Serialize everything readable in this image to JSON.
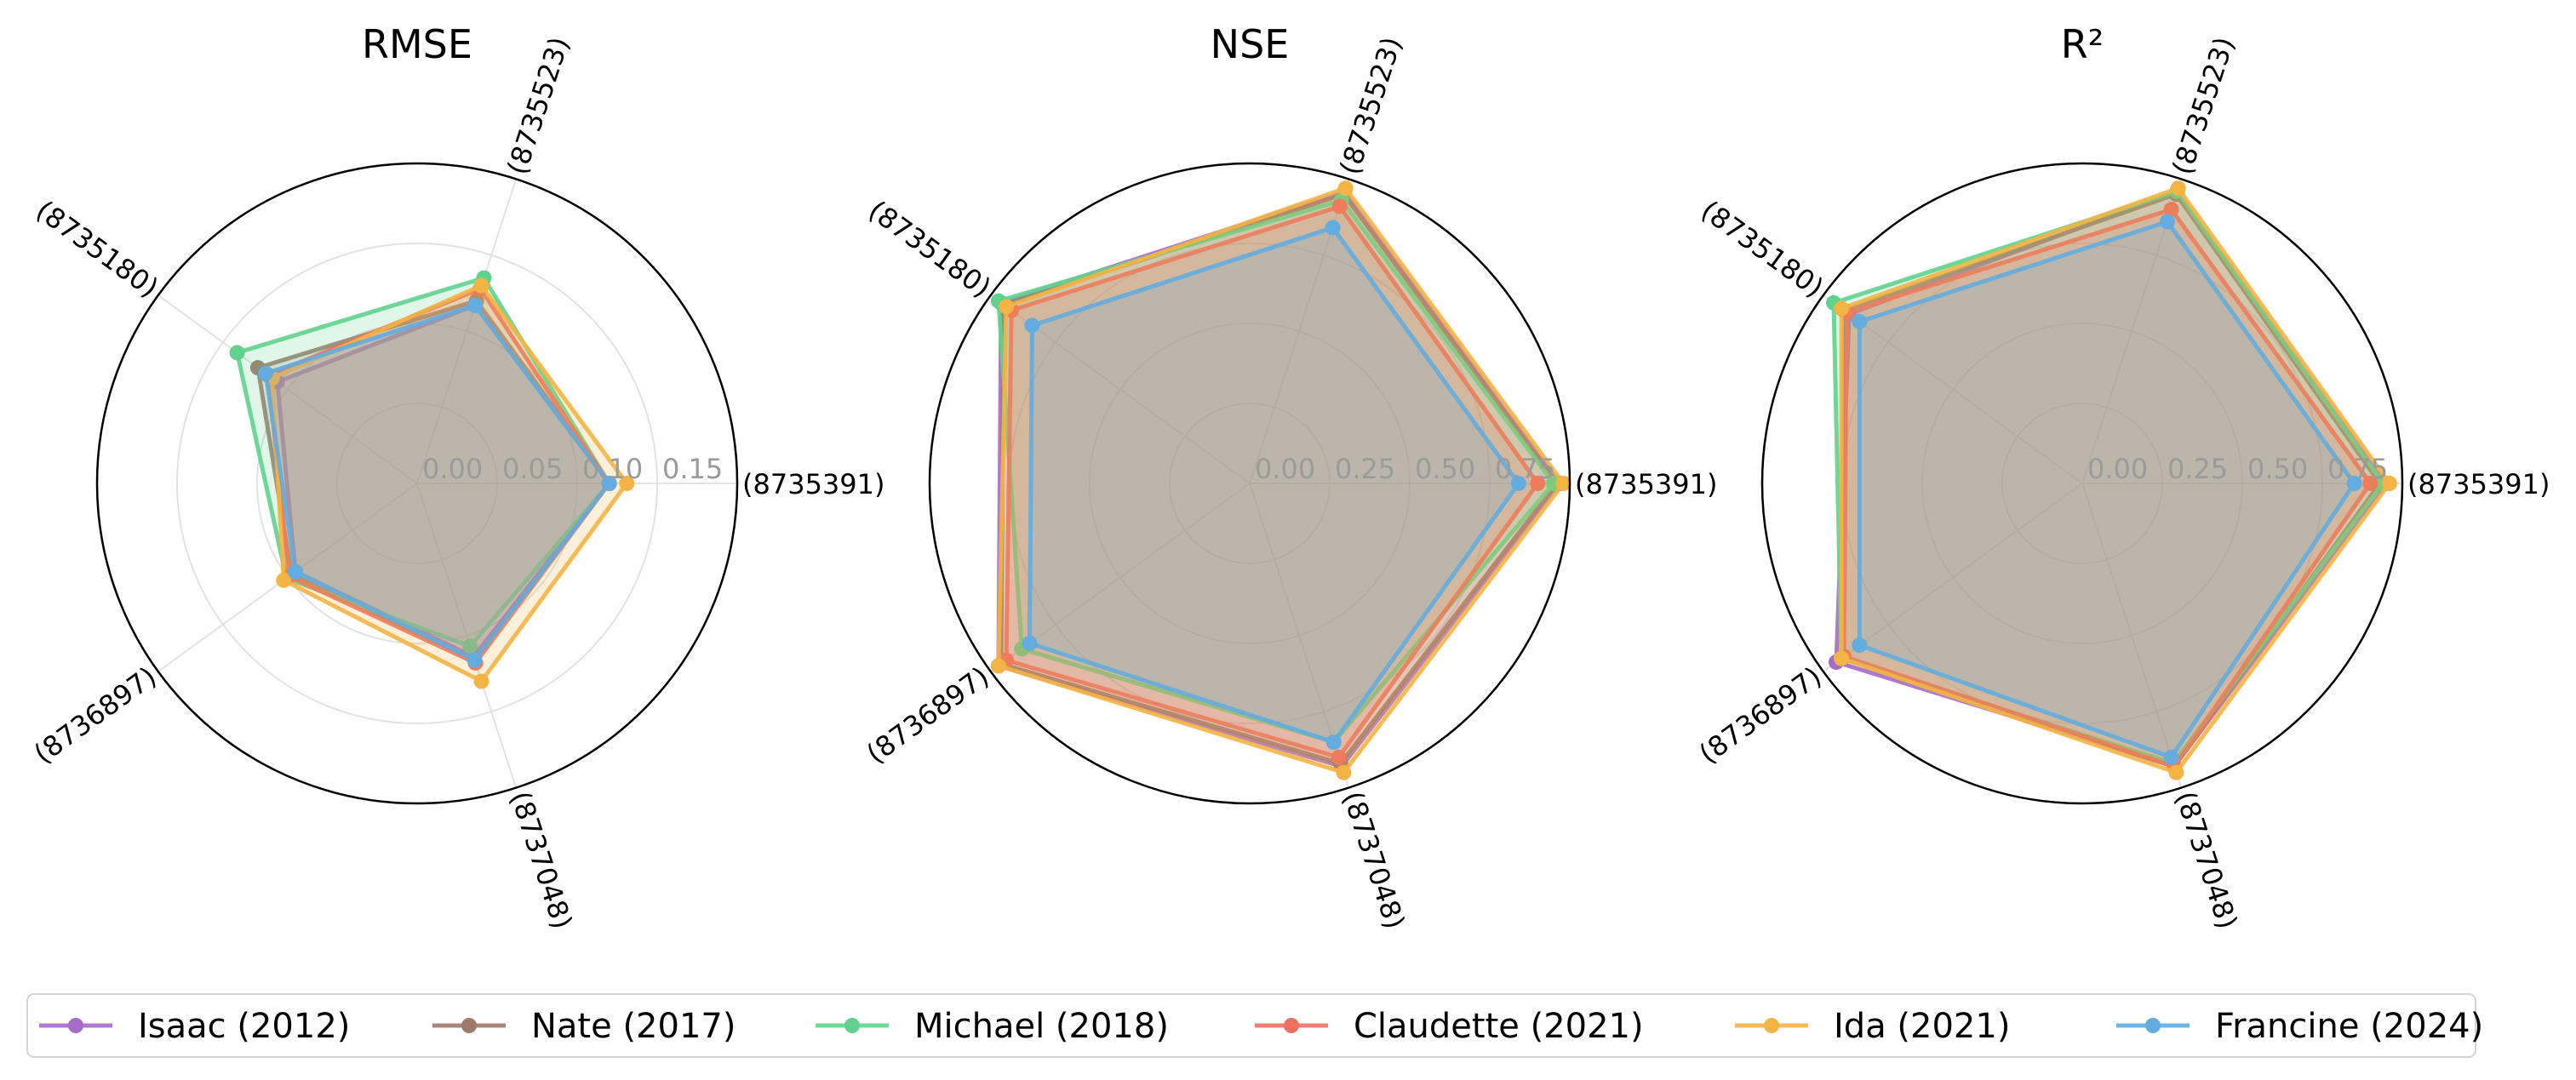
{
  "chart_data": [
    {
      "type": "radar",
      "title": "RMSE",
      "axes": [
        "(8735391)",
        "(8735523)",
        "(8735180)",
        "(8736897)",
        "(8737048)"
      ],
      "rticks": [
        "0.00",
        "0.05",
        "0.10",
        "0.15"
      ],
      "rlim": [
        0,
        0.2
      ],
      "grid": true,
      "series": [
        {
          "name": "Isaac (2012)",
          "values": [
            0.12,
            0.117,
            0.108,
            0.094,
            0.114
          ]
        },
        {
          "name": "Nate (2017)",
          "values": [
            0.12,
            0.12,
            0.123,
            0.097,
            0.116
          ]
        },
        {
          "name": "Michael (2018)",
          "values": [
            0.12,
            0.135,
            0.139,
            0.101,
            0.107
          ]
        },
        {
          "name": "Claudette (2021)",
          "values": [
            0.12,
            0.128,
            0.115,
            0.099,
            0.118
          ]
        },
        {
          "name": "Ida (2021)",
          "values": [
            0.131,
            0.13,
            0.112,
            0.103,
            0.13
          ]
        },
        {
          "name": "Francine (2024)",
          "values": [
            0.12,
            0.117,
            0.117,
            0.094,
            0.116
          ]
        }
      ]
    },
    {
      "type": "radar",
      "title": "NSE",
      "axes": [
        "(8735391)",
        "(8735523)",
        "(8735180)",
        "(8736897)",
        "(8737048)"
      ],
      "rticks": [
        "0.00",
        "0.25",
        "0.50",
        "0.75"
      ],
      "rlim": [
        0,
        1.0
      ],
      "grid": true,
      "series": [
        {
          "name": "Isaac (2012)",
          "values": [
            0.97,
            0.96,
            0.96,
            0.97,
            0.93
          ]
        },
        {
          "name": "Nate (2017)",
          "values": [
            0.96,
            0.95,
            0.95,
            0.96,
            0.92
          ]
        },
        {
          "name": "Michael (2018)",
          "values": [
            0.95,
            0.93,
            0.97,
            0.88,
            0.85
          ]
        },
        {
          "name": "Claudette (2021)",
          "values": [
            0.9,
            0.91,
            0.92,
            0.94,
            0.9
          ]
        },
        {
          "name": "Ida (2021)",
          "values": [
            0.98,
            0.97,
            0.94,
            0.97,
            0.95
          ]
        },
        {
          "name": "Francine (2024)",
          "values": [
            0.84,
            0.84,
            0.84,
            0.85,
            0.85
          ]
        }
      ]
    },
    {
      "type": "radar",
      "title": "R²",
      "axes": [
        "(8735391)",
        "(8735523)",
        "(8735180)",
        "(8736897)",
        "(8737048)"
      ],
      "rticks": [
        "0.00",
        "0.25",
        "0.50",
        "0.75"
      ],
      "rlim": [
        0,
        1.0
      ],
      "grid": true,
      "series": [
        {
          "name": "Isaac (2012)",
          "values": [
            0.95,
            0.96,
            0.9,
            0.95,
            0.93
          ]
        },
        {
          "name": "Nate (2017)",
          "values": [
            0.93,
            0.95,
            0.92,
            0.93,
            0.93
          ]
        },
        {
          "name": "Michael (2018)",
          "values": [
            0.94,
            0.96,
            0.96,
            0.93,
            0.92
          ]
        },
        {
          "name": "Claudette (2021)",
          "values": [
            0.9,
            0.9,
            0.91,
            0.92,
            0.93
          ]
        },
        {
          "name": "Ida (2021)",
          "values": [
            0.96,
            0.97,
            0.93,
            0.93,
            0.95
          ]
        },
        {
          "name": "Francine (2024)",
          "values": [
            0.85,
            0.86,
            0.86,
            0.86,
            0.9
          ]
        }
      ]
    }
  ],
  "legend": {
    "placement": "bottom",
    "items": [
      {
        "name": "Isaac (2012)",
        "color": "#A66BC8"
      },
      {
        "name": "Nate (2017)",
        "color": "#A0796B"
      },
      {
        "name": "Michael (2018)",
        "color": "#5FD38D"
      },
      {
        "name": "Claudette (2021)",
        "color": "#EB7060"
      },
      {
        "name": "Ida (2021)",
        "color": "#F4B444"
      },
      {
        "name": "Francine (2024)",
        "color": "#62ACE0"
      }
    ]
  }
}
